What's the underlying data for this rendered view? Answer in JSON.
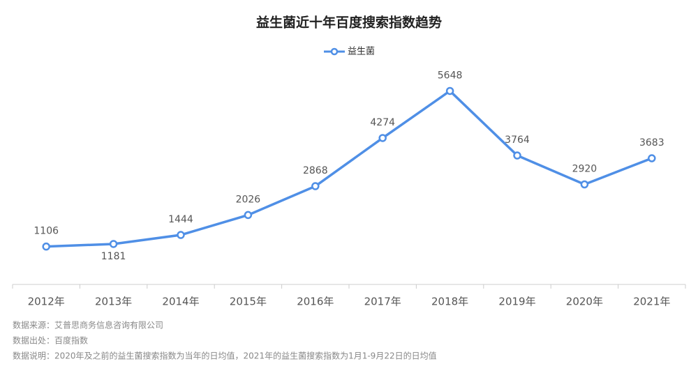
{
  "chart_data": {
    "type": "line",
    "title": "益生菌近十年百度搜索指数趋势",
    "categories": [
      "2012年",
      "2013年",
      "2014年",
      "2015年",
      "2016年",
      "2017年",
      "2018年",
      "2019年",
      "2020年",
      "2021年"
    ],
    "series": [
      {
        "name": "益生菌",
        "color": "#4f8fe6",
        "values": [
          1106,
          1181,
          1444,
          2026,
          2868,
          4274,
          5648,
          3764,
          2920,
          3683
        ]
      }
    ],
    "ylim": [
      0,
      7000
    ],
    "legend": "top"
  },
  "notes": [
    "数据来源：艾普思商务信息咨询有限公司",
    "数据出处：百度指数",
    "数据说明：2020年及之前的益生菌搜索指数为当年的日均值，2021年的益生菌搜索指数为1月1-9月22日的日均值"
  ]
}
